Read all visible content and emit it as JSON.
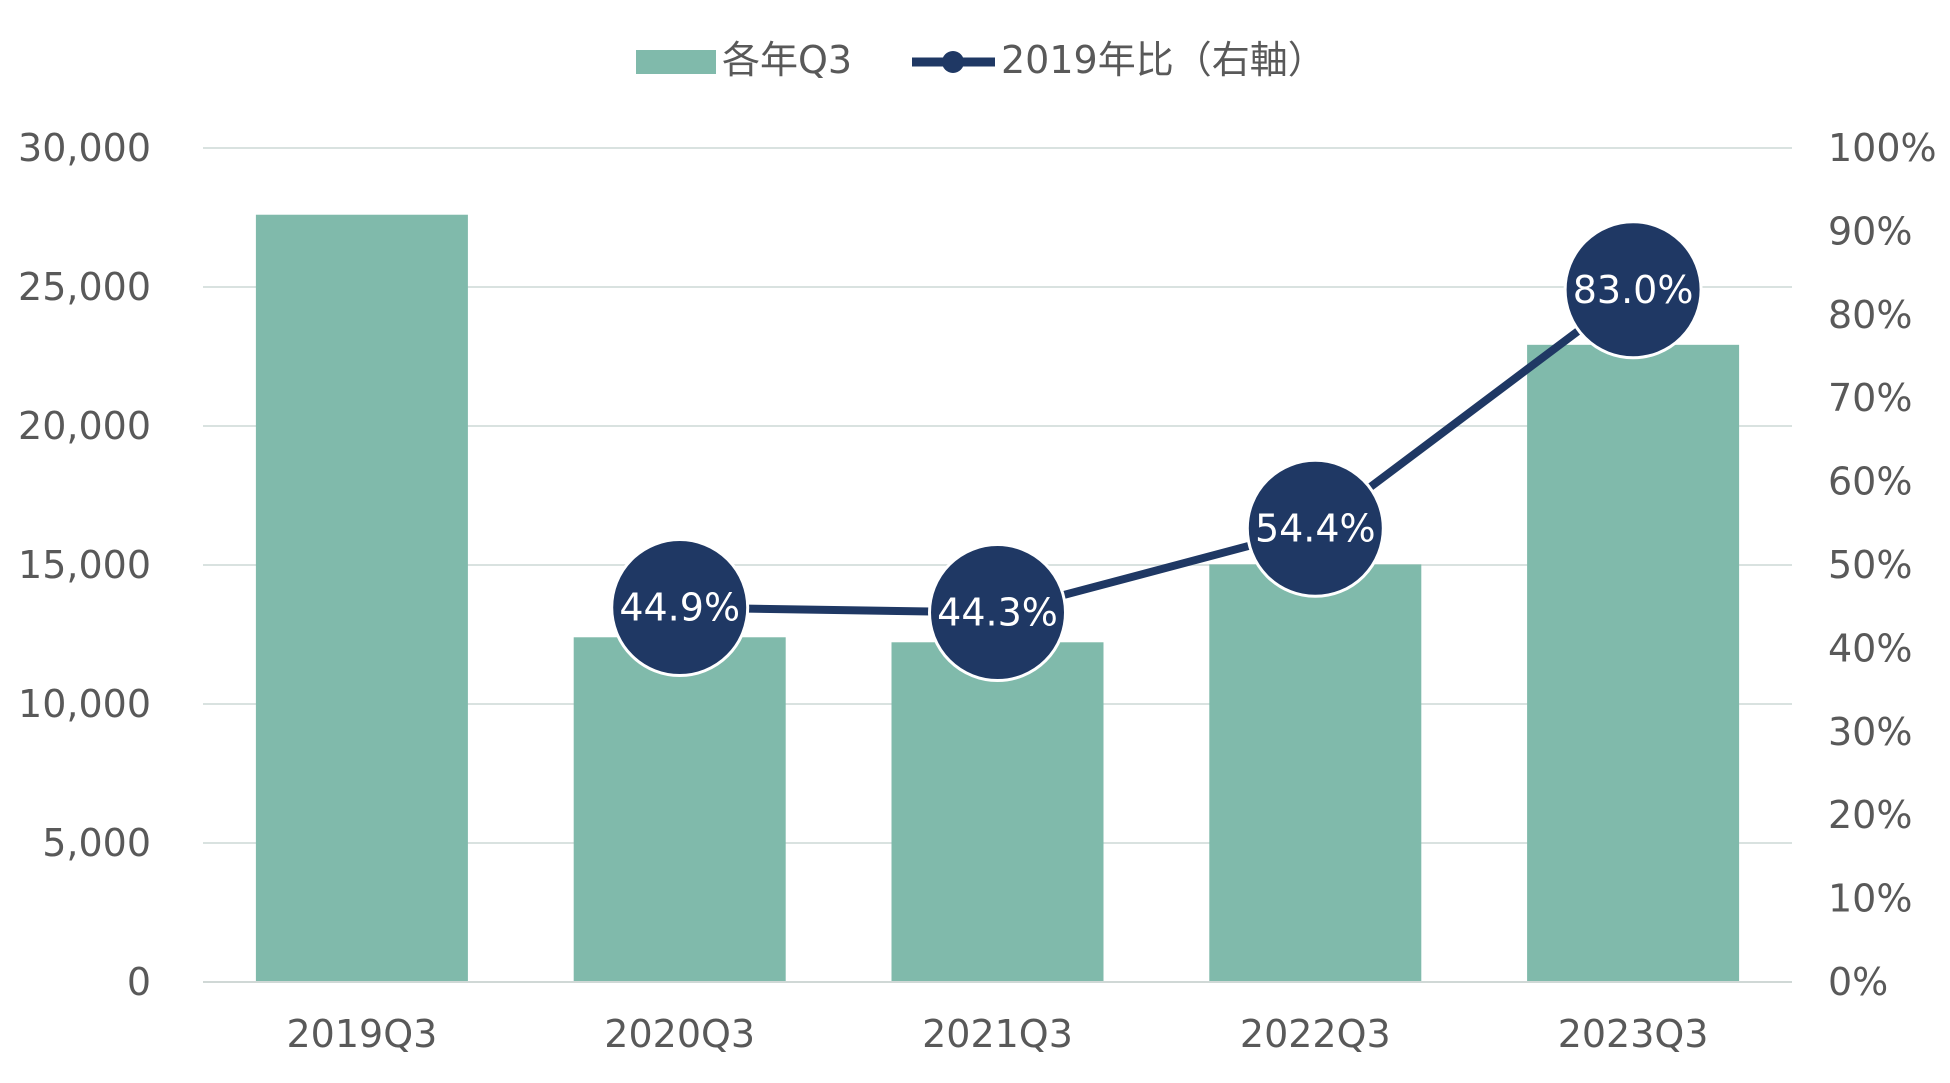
{
  "chart_data": {
    "type": "bar",
    "categories": [
      "2019Q3",
      "2020Q3",
      "2021Q3",
      "2022Q3",
      "2023Q3"
    ],
    "series": [
      {
        "name": "各年Q3",
        "kind": "bar",
        "axis": "left",
        "color": "#80BAAB",
        "values": [
          27600,
          12400,
          12220,
          15020,
          22920
        ]
      },
      {
        "name": "2019年比（右軸）",
        "kind": "line",
        "axis": "right",
        "color": "#1F3864",
        "values": [
          null,
          44.9,
          44.3,
          54.4,
          83.0
        ],
        "labels": [
          "",
          "44.9%",
          "44.3%",
          "54.4%",
          "83.0%"
        ]
      }
    ],
    "y_left": {
      "min": 0,
      "max": 30000,
      "ticks": [
        "0",
        "5,000",
        "10,000",
        "15,000",
        "20,000",
        "25,000",
        "30,000"
      ]
    },
    "y_right": {
      "min": 0,
      "max": 100,
      "ticks": [
        "0%",
        "10%",
        "20%",
        "30%",
        "40%",
        "50%",
        "60%",
        "70%",
        "80%",
        "90%",
        "100%"
      ]
    },
    "grid": true,
    "legend_position": "top-center",
    "gridline_color": "#D9E2E0",
    "axis_line_color": "#D0D8D6"
  }
}
